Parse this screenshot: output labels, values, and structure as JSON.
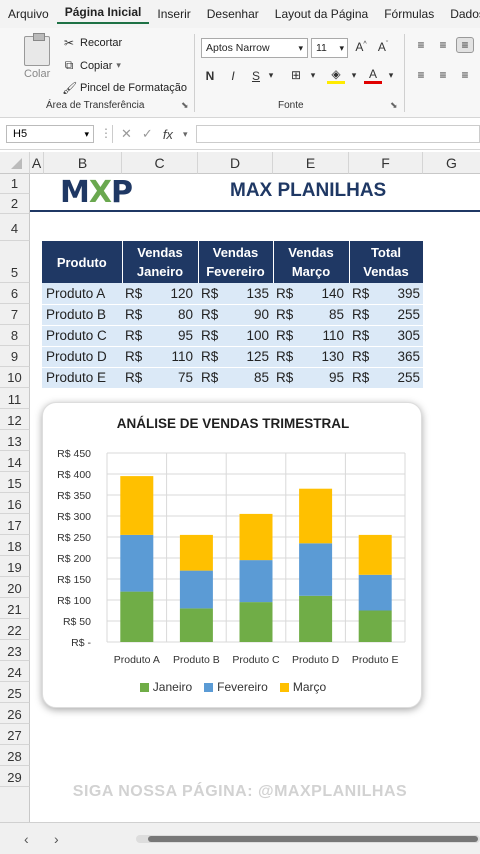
{
  "menu": {
    "tabs": [
      "Arquivo",
      "Página Inicial",
      "Inserir",
      "Desenhar",
      "Layout da Página",
      "Fórmulas",
      "Dados"
    ],
    "active_index": 1
  },
  "ribbon": {
    "clipboard": {
      "paste_label": "Colar",
      "cut_label": "Recortar",
      "copy_label": "Copiar",
      "painter_label": "Pincel de Formatação",
      "group_label": "Área de Transferência"
    },
    "font": {
      "font_name": "Aptos Narrow",
      "font_size": "11",
      "bold": "N",
      "italic": "I",
      "underline": "S",
      "group_label": "Fonte"
    }
  },
  "formula_bar": {
    "name_box": "H5",
    "fx": "fx",
    "cancel": "✕",
    "confirm": "✓",
    "formula": ""
  },
  "columns": [
    "A",
    "B",
    "C",
    "D",
    "E",
    "F",
    "G"
  ],
  "rows": [
    "1",
    "2",
    "4",
    "5",
    "6",
    "7",
    "8",
    "9",
    "10",
    "11",
    "12",
    "13",
    "14",
    "15",
    "16",
    "17",
    "18",
    "19",
    "20",
    "21",
    "22",
    "23",
    "24",
    "25",
    "26",
    "27",
    "28",
    "29"
  ],
  "brand": {
    "title": "MAX PLANILHAS",
    "logo_m": "M",
    "logo_x": "X",
    "logo_p": "P"
  },
  "table": {
    "headers": [
      "Produto",
      "Vendas Janeiro",
      "Vendas Fevereiro",
      "Vendas Março",
      "Total Vendas"
    ],
    "currency": "R$",
    "rows": [
      {
        "product": "Produto A",
        "jan": "120",
        "fev": "135",
        "mar": "140",
        "total": "395"
      },
      {
        "product": "Produto B",
        "jan": "80",
        "fev": "90",
        "mar": "85",
        "total": "255"
      },
      {
        "product": "Produto C",
        "jan": "95",
        "fev": "100",
        "mar": "110",
        "total": "305"
      },
      {
        "product": "Produto D",
        "jan": "110",
        "fev": "125",
        "mar": "130",
        "total": "365"
      },
      {
        "product": "Produto E",
        "jan": "75",
        "fev": "85",
        "mar": "95",
        "total": "255"
      }
    ]
  },
  "chart_data": {
    "type": "bar",
    "stacked": true,
    "title": "ANÁLISE DE VENDAS TRIMESTRAL",
    "categories": [
      "Produto A",
      "Produto B",
      "Produto C",
      "Produto D",
      "Produto E"
    ],
    "series": [
      {
        "name": "Janeiro",
        "values": [
          120,
          80,
          95,
          110,
          75
        ],
        "color": "#70ad47"
      },
      {
        "name": "Fevereiro",
        "values": [
          135,
          90,
          100,
          125,
          85
        ],
        "color": "#5b9bd5"
      },
      {
        "name": "Março",
        "values": [
          140,
          85,
          110,
          130,
          95
        ],
        "color": "#ffc000"
      }
    ],
    "ylim": [
      0,
      450
    ],
    "yticks": [
      0,
      50,
      100,
      150,
      200,
      250,
      300,
      350,
      400,
      450
    ],
    "ytick_labels": [
      "R$ -",
      "R$ 50",
      "R$ 100",
      "R$ 150",
      "R$ 200",
      "R$ 250",
      "R$ 300",
      "R$ 350",
      "R$ 400",
      "R$ 450"
    ],
    "grid": true,
    "legend": "bottom"
  },
  "watermark": "SIGA NOSSA PÁGINA: @MAXPLANILHAS",
  "nav": {
    "prev": "‹",
    "next": "›"
  },
  "colors": {
    "header_navy": "#1f3864",
    "row_light_blue": "#dbe9f7",
    "accent_green": "#1e7145"
  }
}
